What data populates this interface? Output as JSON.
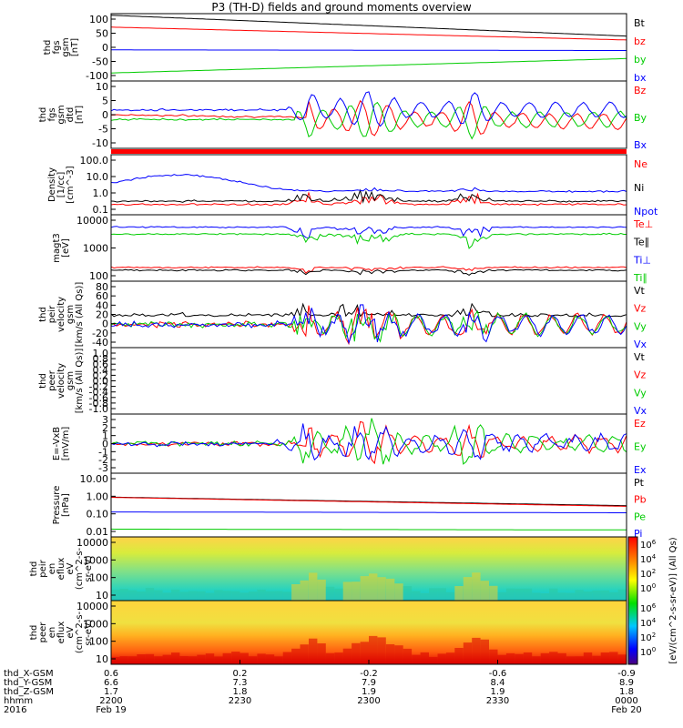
{
  "title": "P3 (TH-D) fields and ground moments overview",
  "colors": {
    "black": "#000000",
    "red": "#ff0000",
    "green": "#00cc00",
    "blue": "#0000ff"
  },
  "colorbar_ticks": [
    "10^6",
    "10^4",
    "10^2",
    "10^0"
  ],
  "colorbar_label": "[eV/(cm^2-s-sr-eV)] (All Qs)",
  "chart_data": [
    {
      "type": "line",
      "panel": "fgs",
      "ylabel": [
        "thd",
        "fgs",
        "gsm",
        "[nT]"
      ],
      "yticks": [
        "100",
        "50",
        "0",
        "-50",
        "-100"
      ],
      "ylim": [
        -100,
        110
      ],
      "series": [
        {
          "name": "Bt",
          "color": "#000000",
          "start": 105,
          "end": 40
        },
        {
          "name": "bz",
          "color": "#ff0000",
          "start": 68,
          "end": 28
        },
        {
          "name": "by",
          "color": "#00cc00",
          "start": -75,
          "end": -30
        },
        {
          "name": "bx",
          "color": "#0000ff",
          "start": -3,
          "end": -5
        }
      ]
    },
    {
      "type": "line",
      "panel": "fgs-detrended",
      "ylabel": [
        "thd",
        "fgs",
        "gsm",
        "dtd",
        "[nT]"
      ],
      "yticks": [
        "10",
        "5",
        "0",
        "-5",
        "-10"
      ],
      "ylim": [
        -14,
        14
      ],
      "series": [
        {
          "name": "Bz",
          "color": "#ff0000"
        },
        {
          "name": "By",
          "color": "#00cc00"
        },
        {
          "name": "Bx",
          "color": "#0000ff"
        }
      ]
    },
    {
      "type": "line",
      "panel": "density",
      "ylabel": [
        "Density",
        "[1/cc]",
        "[cm^-3]"
      ],
      "yticks": [
        "100.0",
        "10.0",
        "1.0",
        "0.1"
      ],
      "scale": "log",
      "series": [
        {
          "name": "Ne",
          "color": "#ff0000"
        },
        {
          "name": "Ni",
          "color": "#000000"
        },
        {
          "name": "Npot",
          "color": "#0000ff"
        }
      ]
    },
    {
      "type": "line",
      "panel": "temperature",
      "ylabel": [
        "magt3",
        "[eV]"
      ],
      "yticks": [
        "10000",
        "1000",
        "100"
      ],
      "scale": "log",
      "series": [
        {
          "name": "Te⊥",
          "color": "#ff0000"
        },
        {
          "name": "Te∥",
          "color": "#000000"
        },
        {
          "name": "Ti⊥",
          "color": "#0000ff"
        },
        {
          "name": "Ti∥",
          "color": "#00cc00"
        }
      ]
    },
    {
      "type": "line",
      "panel": "peir-velocity",
      "ylabel": [
        "thd",
        "peir",
        "velocity",
        "gsm",
        "[km/s (All Qs)]"
      ],
      "yticks": [
        "80",
        "60",
        "40",
        "20",
        "0",
        "-20",
        "-40"
      ],
      "ylim": [
        -50,
        95
      ],
      "series": [
        {
          "name": "Vt",
          "color": "#000000"
        },
        {
          "name": "Vz",
          "color": "#ff0000"
        },
        {
          "name": "Vy",
          "color": "#00cc00"
        },
        {
          "name": "Vx",
          "color": "#0000ff"
        }
      ]
    },
    {
      "type": "line",
      "panel": "peer-velocity",
      "ylabel": [
        "thd",
        "peer",
        "velocity",
        "gsm",
        "[km/s (All Qs)]"
      ],
      "yticks": [
        "1.0",
        "0.8",
        "0.6",
        "0.4",
        "0.2",
        "0.0",
        "-0.2",
        "-0.4",
        "-0.6",
        "-0.8",
        "-1.0"
      ],
      "ylim": [
        -1,
        1
      ],
      "series": [
        {
          "name": "Vt",
          "color": "#000000"
        },
        {
          "name": "Vz",
          "color": "#ff0000"
        },
        {
          "name": "Vy",
          "color": "#00cc00"
        },
        {
          "name": "Vx",
          "color": "#0000ff"
        }
      ]
    },
    {
      "type": "line",
      "panel": "efield",
      "ylabel": [
        "E=-VxB",
        "[mV/m]"
      ],
      "yticks": [
        "3",
        "2",
        "1",
        "0",
        "-1",
        "-2",
        "-3"
      ],
      "ylim": [
        -3,
        3
      ],
      "series": [
        {
          "name": "Ez",
          "color": "#ff0000"
        },
        {
          "name": "Ey",
          "color": "#00cc00"
        },
        {
          "name": "Ex",
          "color": "#0000ff"
        }
      ]
    },
    {
      "type": "line",
      "panel": "pressure",
      "ylabel": [
        "Pressure",
        "[nPa]"
      ],
      "yticks": [
        "10.00",
        "1.00",
        "0.10",
        "0.01"
      ],
      "scale": "log",
      "series": [
        {
          "name": "Pt",
          "color": "#000000",
          "start": 4.0,
          "end": 0.9
        },
        {
          "name": "Pb",
          "color": "#ff0000",
          "start": 3.8,
          "end": 0.8
        },
        {
          "name": "Pe",
          "color": "#00cc00",
          "start": 0.015,
          "end": 0.013
        },
        {
          "name": "Pi",
          "color": "#0000ff",
          "start": 0.3,
          "end": 0.26
        }
      ]
    },
    {
      "type": "heatmap",
      "panel": "peir-spectrogram",
      "ylabel": [
        "thd",
        "peir",
        "en",
        "eflux",
        "eV",
        "(cm^2-s-",
        "sr-eV)"
      ],
      "yticks": [
        "10000",
        "1000",
        "100",
        "10"
      ],
      "scale": "log"
    },
    {
      "type": "heatmap",
      "panel": "peer-spectrogram",
      "ylabel": [
        "thd",
        "peer",
        "en",
        "eflux",
        "eV",
        "(cm^2-s-",
        "sr-eV)"
      ],
      "yticks": [
        "10000",
        "1000",
        "100",
        "10"
      ],
      "scale": "log"
    }
  ],
  "xaxis": {
    "row_labels": [
      "thd_X-GSM",
      "thd_Y-GSM",
      "thd_Z-GSM",
      "hhmm",
      "2016"
    ],
    "columns": [
      [
        "0.6",
        "6.6",
        "1.7",
        "2200",
        "Feb 19"
      ],
      [
        "0.2",
        "7.3",
        "1.8",
        "2230",
        ""
      ],
      [
        "-0.2",
        "7.9",
        "1.9",
        "2300",
        ""
      ],
      [
        "-0.6",
        "8.4",
        "1.9",
        "2330",
        ""
      ],
      [
        "-0.9",
        "8.9",
        "1.8",
        "0000",
        "Feb 20"
      ]
    ]
  }
}
